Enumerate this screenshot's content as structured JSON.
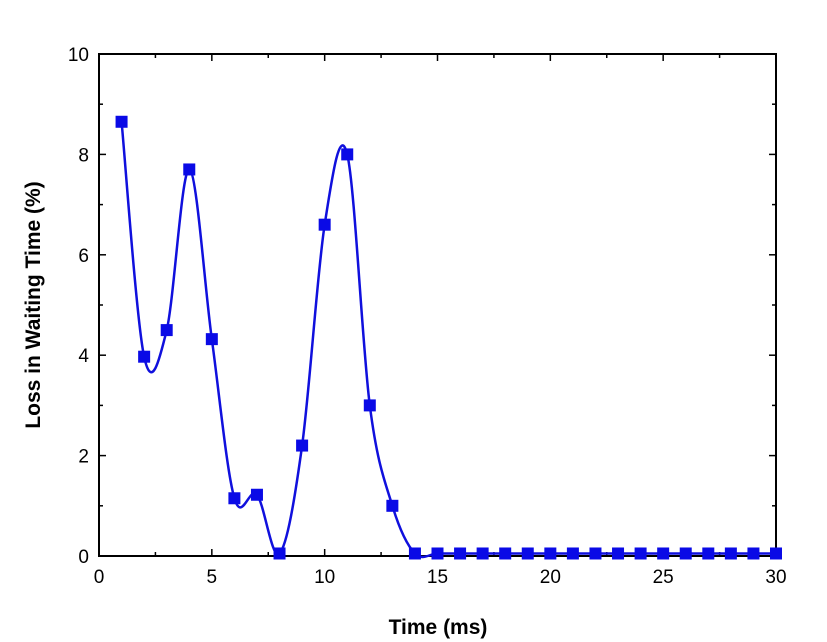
{
  "chart_data": {
    "type": "line",
    "xlabel": "Time (ms)",
    "ylabel": "Loss in Waiting Time (%)",
    "xlim": [
      0,
      30
    ],
    "ylim": [
      0,
      10
    ],
    "xticks": [
      0,
      5,
      10,
      15,
      20,
      25,
      30
    ],
    "yticks": [
      0,
      2,
      4,
      6,
      8,
      10
    ],
    "grid": false,
    "series": [
      {
        "color": "#0a0ae6",
        "marker": "square",
        "smooth": true,
        "x": [
          1,
          2,
          3,
          4,
          5,
          6,
          7,
          8,
          9,
          10,
          11,
          12,
          13,
          14,
          15,
          16,
          17,
          18,
          19,
          20,
          21,
          22,
          23,
          24,
          25,
          26,
          27,
          28,
          29,
          30
        ],
        "y": [
          8.65,
          3.97,
          4.5,
          7.7,
          4.32,
          1.15,
          1.22,
          0.05,
          2.2,
          6.6,
          8.0,
          3.0,
          1.0,
          0.05,
          0.05,
          0.05,
          0.05,
          0.05,
          0.05,
          0.05,
          0.05,
          0.05,
          0.05,
          0.05,
          0.05,
          0.05,
          0.05,
          0.05,
          0.05,
          0.05
        ]
      }
    ]
  }
}
